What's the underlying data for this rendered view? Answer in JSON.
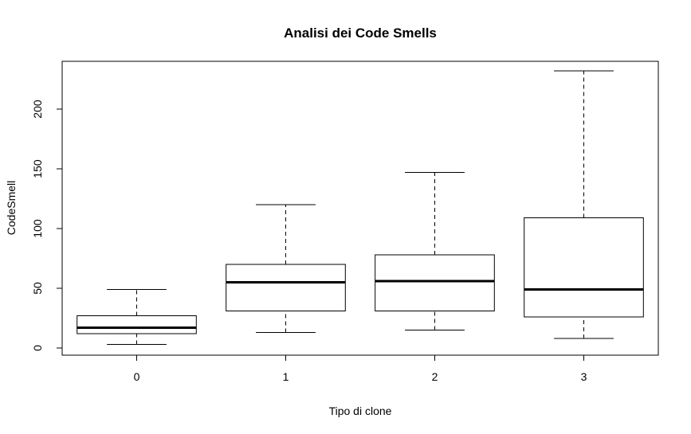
{
  "chart_data": {
    "type": "boxplot",
    "title": "Analisi dei Code Smells",
    "xlabel": "Tipo di clone",
    "ylabel": "CodeSmell",
    "categories": [
      "0",
      "1",
      "2",
      "3"
    ],
    "yticks": [
      "0",
      "50",
      "100",
      "150",
      "200"
    ],
    "ylim": [
      -6,
      240
    ],
    "boxes": [
      {
        "category": "0",
        "whisker_low": 3,
        "q1": 12,
        "median": 17,
        "q3": 27,
        "whisker_high": 49
      },
      {
        "category": "1",
        "whisker_low": 13,
        "q1": 31,
        "median": 55,
        "q3": 70,
        "whisker_high": 120
      },
      {
        "category": "2",
        "whisker_low": 15,
        "q1": 31,
        "median": 56,
        "q3": 78,
        "whisker_high": 147
      },
      {
        "category": "3",
        "whisker_low": 8,
        "q1": 26,
        "median": 49,
        "q3": 109,
        "whisker_high": 232
      }
    ],
    "grid": false,
    "box_color": "#000000",
    "fill_color": "#ffffff"
  }
}
